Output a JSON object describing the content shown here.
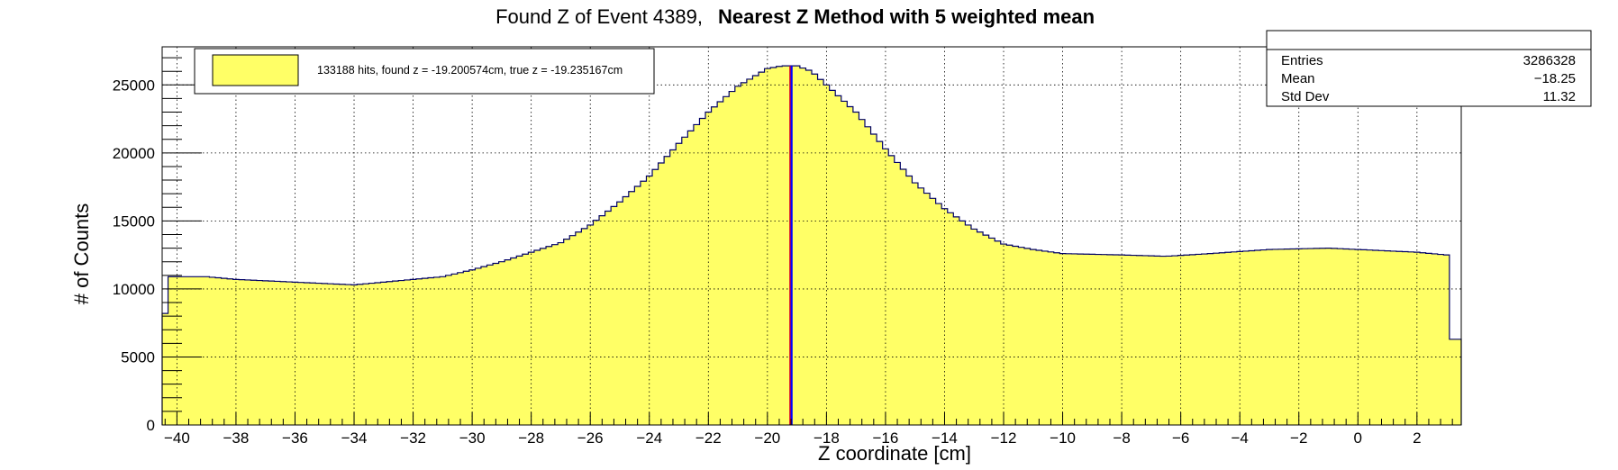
{
  "chart_data": {
    "type": "histogram",
    "title_parts": [
      "Found Z of Event 4389,",
      "Nearest Z Method with 5 weighted mean"
    ],
    "xlabel": "Z coordinate [cm]",
    "ylabel": "# of Counts",
    "xlim": [
      -40.5,
      3.5
    ],
    "ylim": [
      0,
      27800
    ],
    "x_ticks": [
      -40,
      -38,
      -36,
      -34,
      -32,
      -30,
      -28,
      -26,
      -24,
      -22,
      -20,
      -18,
      -16,
      -14,
      -12,
      -10,
      -8,
      -6,
      -4,
      -2,
      0,
      2
    ],
    "y_ticks": [
      0,
      5000,
      10000,
      15000,
      20000,
      25000
    ],
    "grid": true,
    "bin_width": 0.2,
    "fill_color": "#ffff66",
    "line_color": "#000066",
    "profile": [
      [
        -40.5,
        5500
      ],
      [
        -40.3,
        10900
      ],
      [
        -39.0,
        10900
      ],
      [
        -38.0,
        10700
      ],
      [
        -36.0,
        10500
      ],
      [
        -34.0,
        10300
      ],
      [
        -33.0,
        10500
      ],
      [
        -32.0,
        10700
      ],
      [
        -31.0,
        10900
      ],
      [
        -30.0,
        11400
      ],
      [
        -29.0,
        12000
      ],
      [
        -28.0,
        12700
      ],
      [
        -27.0,
        13400
      ],
      [
        -26.0,
        14700
      ],
      [
        -25.0,
        16400
      ],
      [
        -24.0,
        18300
      ],
      [
        -23.0,
        20700
      ],
      [
        -22.0,
        23000
      ],
      [
        -21.0,
        24900
      ],
      [
        -20.0,
        26200
      ],
      [
        -19.5,
        26400
      ],
      [
        -19.0,
        26400
      ],
      [
        -18.5,
        26000
      ],
      [
        -18.0,
        25000
      ],
      [
        -17.0,
        23000
      ],
      [
        -16.0,
        20300
      ],
      [
        -15.0,
        17800
      ],
      [
        -14.0,
        15900
      ],
      [
        -13.0,
        14400
      ],
      [
        -12.0,
        13300
      ],
      [
        -11.0,
        12900
      ],
      [
        -10.0,
        12600
      ],
      [
        -8.0,
        12500
      ],
      [
        -6.5,
        12400
      ],
      [
        -5.0,
        12600
      ],
      [
        -3.0,
        12900
      ],
      [
        -1.0,
        13000
      ],
      [
        0.0,
        12900
      ],
      [
        1.0,
        12800
      ],
      [
        2.0,
        12700
      ],
      [
        3.0,
        12500
      ],
      [
        3.15,
        6300
      ],
      [
        3.5,
        6300
      ]
    ],
    "lines": [
      {
        "name": "found z",
        "x": -19.200574,
        "color": "#0000ff"
      },
      {
        "name": "true z",
        "x": -19.235167,
        "color": "#ff0000"
      }
    ],
    "legend": {
      "text": "133188 hits, found z = -19.200574cm, true z = -19.235167cm",
      "placement": "top-left"
    },
    "stats": {
      "placement": "top-right",
      "rows": [
        {
          "label": "Entries",
          "value": "3286328"
        },
        {
          "label": "Mean",
          "value": "−18.25"
        },
        {
          "label": "Std Dev",
          "value": "11.32"
        }
      ]
    }
  }
}
